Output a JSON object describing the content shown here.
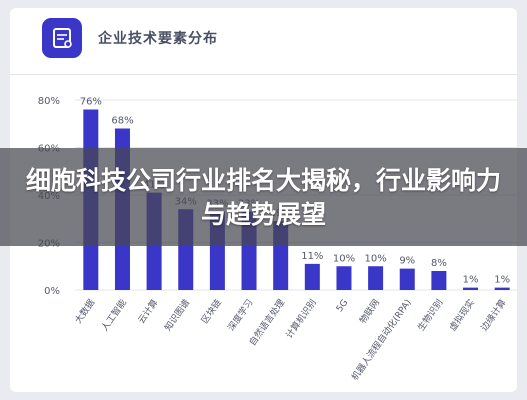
{
  "header": {
    "title": "企业技术要素分布",
    "icon": "tech-doc-icon"
  },
  "banner": {
    "title": "细胞科技公司行业排名大揭秘，行业影响力与趋势展望"
  },
  "colors": {
    "bar": "#3a36c8",
    "grid": "#e2e4ea",
    "axis_text": "#555a6b"
  },
  "chart_data": {
    "type": "bar",
    "title": "企业技术要素分布",
    "xlabel": "",
    "ylabel": "",
    "ylim": [
      0,
      80
    ],
    "yticks": [
      "0%",
      "20%",
      "40%",
      "60%",
      "80%"
    ],
    "categories": [
      "大数据",
      "人工智能",
      "云计算",
      "知识图谱",
      "区块链",
      "深度学习",
      "自然语言处理",
      "计算机识别",
      "5G",
      "物联网",
      "机器人流程自动化(RPA)",
      "生物识别",
      "虚拟现实",
      "边缘计算"
    ],
    "values": [
      76,
      68,
      41,
      34,
      33,
      33,
      29,
      11,
      10,
      10,
      9,
      8,
      1,
      1
    ],
    "value_labels": [
      "76%",
      "68%",
      "41%",
      "34%",
      "33%",
      "33%",
      "29%",
      "11%",
      "10%",
      "10%",
      "9%",
      "8%",
      "1%",
      "1%"
    ],
    "grid": true,
    "legend": "none"
  }
}
